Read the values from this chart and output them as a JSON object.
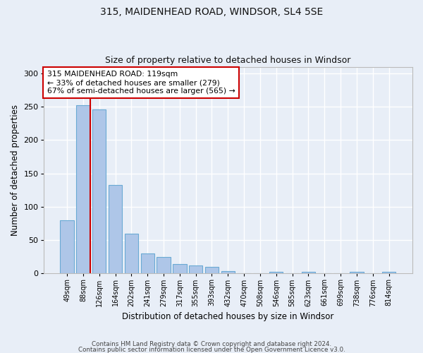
{
  "title1": "315, MAIDENHEAD ROAD, WINDSOR, SL4 5SE",
  "title2": "Size of property relative to detached houses in Windsor",
  "xlabel": "Distribution of detached houses by size in Windsor",
  "ylabel": "Number of detached properties",
  "categories": [
    "49sqm",
    "88sqm",
    "126sqm",
    "164sqm",
    "202sqm",
    "241sqm",
    "279sqm",
    "317sqm",
    "355sqm",
    "393sqm",
    "432sqm",
    "470sqm",
    "508sqm",
    "546sqm",
    "585sqm",
    "623sqm",
    "661sqm",
    "699sqm",
    "738sqm",
    "776sqm",
    "814sqm"
  ],
  "values": [
    80,
    252,
    246,
    133,
    60,
    30,
    25,
    14,
    12,
    10,
    4,
    0,
    0,
    3,
    0,
    3,
    0,
    0,
    3,
    0,
    3
  ],
  "bar_color": "#aec6e8",
  "bar_edge_color": "#6aaad4",
  "ylim": [
    0,
    310
  ],
  "yticks": [
    0,
    50,
    100,
    150,
    200,
    250,
    300
  ],
  "red_line_color": "#cc0000",
  "annotation_line1": "315 MAIDENHEAD ROAD: 119sqm",
  "annotation_line2": "← 33% of detached houses are smaller (279)",
  "annotation_line3": "67% of semi-detached houses are larger (565) →",
  "annotation_box_color": "#ffffff",
  "annotation_box_edge": "#cc0000",
  "footer1": "Contains HM Land Registry data © Crown copyright and database right 2024.",
  "footer2": "Contains public sector information licensed under the Open Government Licence v3.0.",
  "bg_color": "#e8eef7",
  "plot_bg_color": "#e8eef7",
  "grid_color": "#ffffff"
}
